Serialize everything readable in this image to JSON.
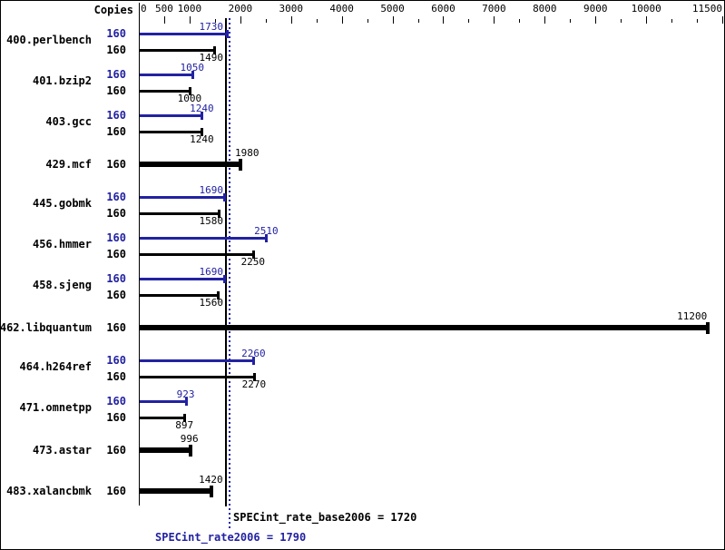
{
  "chart_data": {
    "type": "bar",
    "orientation": "horizontal",
    "copies_header": "Copies",
    "axis": {
      "min": 0,
      "max": 11500,
      "labeled_ticks": [
        0,
        500,
        1000,
        2000,
        3000,
        4000,
        5000,
        6000,
        7000,
        8000,
        9000,
        10000,
        11500
      ],
      "minor_tick_step": 500
    },
    "legend": {
      "peak_series": "SPECint_rate2006",
      "base_series": "SPECint_rate_base2006"
    },
    "benchmarks": [
      {
        "name": "400.perlbench",
        "copies": 160,
        "peak": 1730,
        "base": 1490
      },
      {
        "name": "401.bzip2",
        "copies": 160,
        "peak": 1050,
        "base": 1000
      },
      {
        "name": "403.gcc",
        "copies": 160,
        "peak": 1240,
        "base": 1240
      },
      {
        "name": "429.mcf",
        "copies": 160,
        "value": 1980
      },
      {
        "name": "445.gobmk",
        "copies": 160,
        "peak": 1690,
        "base": 1580
      },
      {
        "name": "456.hmmer",
        "copies": 160,
        "peak": 2510,
        "base": 2250
      },
      {
        "name": "458.sjeng",
        "copies": 160,
        "peak": 1690,
        "base": 1560
      },
      {
        "name": "462.libquantum",
        "copies": 160,
        "value": 11200
      },
      {
        "name": "464.h264ref",
        "copies": 160,
        "peak": 2260,
        "base": 2270
      },
      {
        "name": "471.omnetpp",
        "copies": 160,
        "peak": 923,
        "base": 897
      },
      {
        "name": "473.astar",
        "copies": 160,
        "value": 996
      },
      {
        "name": "483.xalancbmk",
        "copies": 160,
        "value": 1420
      }
    ],
    "summary": {
      "base": {
        "label": "SPECint_rate_base2006",
        "value": 1720,
        "text": "SPECint_rate_base2006 = 1720"
      },
      "peak": {
        "label": "SPECint_rate2006",
        "value": 1790,
        "text": "SPECint_rate2006 = 1790"
      }
    },
    "colors": {
      "peak_blue": "#2222a2",
      "base_black": "#000000",
      "background": "#ffffff"
    }
  }
}
